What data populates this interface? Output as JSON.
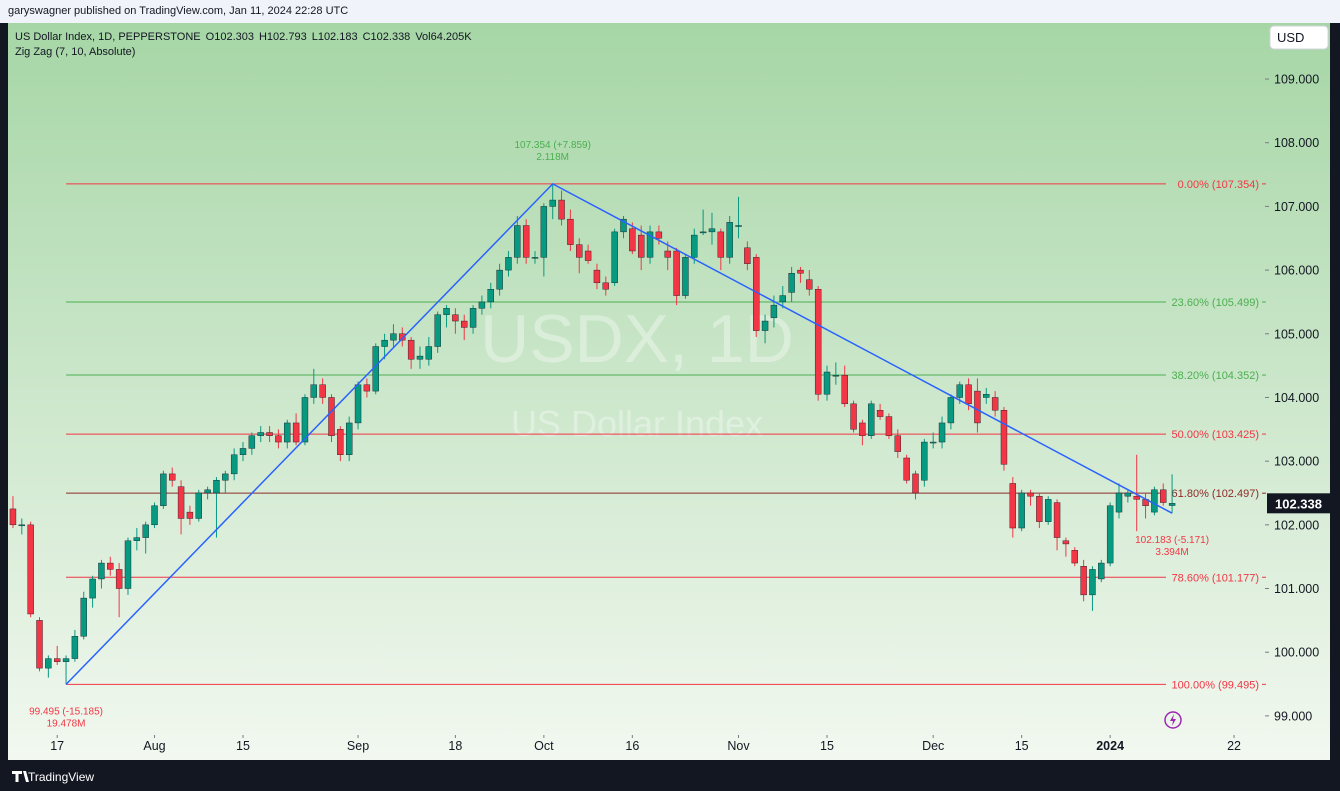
{
  "header": {
    "published": "garyswagner published on TradingView.com, Jan 11, 2024 22:28 UTC",
    "logo": "TradingView"
  },
  "chart_data": {
    "type": "candlestick",
    "title": "US Dollar Index, 1D, PEPPERSTONE",
    "legend_values": [
      "O102.303",
      "H102.793",
      "L102.183",
      "C102.338",
      "Vol64.205K"
    ],
    "indicator": "Zig Zag (7, 10, Absolute)",
    "watermark": [
      "USDX, 1D",
      "US Dollar Index"
    ],
    "currency": "USD",
    "colors": {
      "up": "#089981",
      "down": "#f23645"
    },
    "grid": false,
    "last_price": {
      "value": 102.338,
      "label": "102.338"
    },
    "xlim": [
      -0.56,
      141.5
    ],
    "ylim": [
      98.7,
      109.88
    ],
    "yticks": [
      {
        "value": 99,
        "label": "99.000"
      },
      {
        "value": 100,
        "label": "100.000"
      },
      {
        "value": 101,
        "label": "101.000"
      },
      {
        "value": 102,
        "label": "102.000"
      },
      {
        "value": 103,
        "label": "103.000"
      },
      {
        "value": 104,
        "label": "104.000"
      },
      {
        "value": 105,
        "label": "105.000"
      },
      {
        "value": 106,
        "label": "106.000"
      },
      {
        "value": 107,
        "label": "107.000"
      },
      {
        "value": 108,
        "label": "108.000"
      },
      {
        "value": 109,
        "label": "109.000"
      }
    ],
    "xticks": [
      {
        "value": 5,
        "label": "17"
      },
      {
        "value": 16,
        "label": "Aug"
      },
      {
        "value": 26,
        "label": "15"
      },
      {
        "value": 39,
        "label": "Sep"
      },
      {
        "value": 50,
        "label": "18"
      },
      {
        "value": 60,
        "label": "Oct"
      },
      {
        "value": 70,
        "label": "16"
      },
      {
        "value": 82,
        "label": "Nov"
      },
      {
        "value": 92,
        "label": "15"
      },
      {
        "value": 104,
        "label": "Dec"
      },
      {
        "value": 114,
        "label": "15"
      },
      {
        "value": 124,
        "label": "2024"
      },
      {
        "value": 138,
        "label": "22"
      }
    ],
    "ohlc": [
      [
        102.25,
        102.45,
        101.95,
        102.0
      ],
      [
        102.0,
        102.1,
        101.85,
        102.0
      ],
      [
        102.0,
        102.05,
        100.55,
        100.6
      ],
      [
        100.5,
        100.55,
        99.7,
        99.75
      ],
      [
        99.75,
        99.95,
        99.6,
        99.9
      ],
      [
        99.9,
        100.1,
        99.8,
        99.85
      ],
      [
        99.85,
        99.95,
        99.495,
        99.9
      ],
      [
        99.9,
        100.35,
        99.85,
        100.25
      ],
      [
        100.25,
        100.95,
        100.2,
        100.85
      ],
      [
        100.85,
        101.2,
        100.7,
        101.15
      ],
      [
        101.15,
        101.45,
        101.0,
        101.4
      ],
      [
        101.4,
        101.5,
        101.2,
        101.3
      ],
      [
        101.3,
        101.4,
        100.55,
        101.0
      ],
      [
        101.0,
        101.8,
        100.9,
        101.75
      ],
      [
        101.75,
        101.95,
        101.6,
        101.8
      ],
      [
        101.8,
        102.05,
        101.55,
        102.0
      ],
      [
        102.0,
        102.35,
        101.95,
        102.3
      ],
      [
        102.3,
        102.85,
        102.25,
        102.8
      ],
      [
        102.8,
        102.9,
        102.6,
        102.7
      ],
      [
        102.6,
        102.7,
        101.85,
        102.1
      ],
      [
        102.2,
        102.3,
        102.0,
        102.1
      ],
      [
        102.1,
        102.55,
        102.05,
        102.5
      ],
      [
        102.5,
        102.6,
        102.4,
        102.55
      ],
      [
        102.5,
        102.75,
        101.8,
        102.7
      ],
      [
        102.7,
        102.85,
        102.5,
        102.8
      ],
      [
        102.8,
        103.2,
        102.7,
        103.1
      ],
      [
        103.1,
        103.3,
        103.0,
        103.2
      ],
      [
        103.2,
        103.45,
        103.1,
        103.4
      ],
      [
        103.4,
        103.55,
        103.3,
        103.45
      ],
      [
        103.45,
        103.55,
        103.3,
        103.4
      ],
      [
        103.4,
        103.5,
        103.2,
        103.3
      ],
      [
        103.3,
        103.65,
        103.2,
        103.6
      ],
      [
        103.6,
        103.75,
        103.25,
        103.3
      ],
      [
        103.3,
        104.05,
        103.25,
        104.0
      ],
      [
        104.0,
        104.45,
        103.9,
        104.2
      ],
      [
        104.2,
        104.3,
        103.9,
        104.0
      ],
      [
        104.0,
        104.05,
        103.3,
        103.4
      ],
      [
        103.5,
        103.55,
        103.0,
        103.1
      ],
      [
        103.1,
        103.7,
        103.0,
        103.6
      ],
      [
        103.6,
        104.25,
        103.5,
        104.2
      ],
      [
        104.2,
        104.3,
        104.0,
        104.1
      ],
      [
        104.1,
        104.85,
        104.05,
        104.8
      ],
      [
        104.8,
        105.0,
        104.6,
        104.9
      ],
      [
        104.9,
        105.15,
        104.8,
        105.0
      ],
      [
        105.0,
        105.1,
        104.8,
        104.9
      ],
      [
        104.9,
        104.95,
        104.45,
        104.6
      ],
      [
        104.6,
        104.8,
        104.45,
        104.65
      ],
      [
        104.6,
        104.95,
        104.5,
        104.8
      ],
      [
        104.8,
        105.35,
        104.7,
        105.3
      ],
      [
        105.3,
        105.45,
        105.1,
        105.4
      ],
      [
        105.3,
        105.4,
        105.0,
        105.2
      ],
      [
        105.2,
        105.3,
        104.9,
        105.1
      ],
      [
        105.1,
        105.45,
        105.0,
        105.4
      ],
      [
        105.4,
        105.6,
        105.3,
        105.5
      ],
      [
        105.5,
        105.8,
        105.4,
        105.7
      ],
      [
        105.7,
        106.1,
        105.6,
        106.0
      ],
      [
        106.0,
        106.3,
        105.9,
        106.2
      ],
      [
        106.2,
        106.85,
        106.1,
        106.7
      ],
      [
        106.7,
        106.8,
        106.1,
        106.2
      ],
      [
        106.2,
        106.3,
        106.1,
        106.2
      ],
      [
        106.2,
        107.05,
        105.9,
        107.0
      ],
      [
        107.0,
        107.354,
        106.8,
        107.1
      ],
      [
        107.1,
        107.25,
        106.7,
        106.8
      ],
      [
        106.8,
        106.95,
        106.3,
        106.4
      ],
      [
        106.4,
        106.5,
        105.95,
        106.2
      ],
      [
        106.3,
        106.4,
        106.1,
        106.15
      ],
      [
        106.0,
        106.1,
        105.7,
        105.8
      ],
      [
        105.8,
        105.9,
        105.6,
        105.7
      ],
      [
        105.8,
        106.65,
        105.75,
        106.6
      ],
      [
        106.6,
        106.85,
        106.5,
        106.8
      ],
      [
        106.65,
        106.75,
        106.25,
        106.3
      ],
      [
        106.55,
        106.7,
        106.0,
        106.2
      ],
      [
        106.2,
        106.7,
        106.1,
        106.6
      ],
      [
        106.6,
        106.7,
        106.4,
        106.5
      ],
      [
        106.3,
        106.45,
        106.0,
        106.2
      ],
      [
        106.3,
        106.35,
        105.45,
        105.6
      ],
      [
        105.6,
        106.25,
        105.55,
        106.2
      ],
      [
        106.2,
        106.65,
        106.1,
        106.55
      ],
      [
        106.6,
        106.95,
        106.55,
        106.6
      ],
      [
        106.6,
        106.9,
        106.4,
        106.65
      ],
      [
        106.6,
        106.65,
        106.0,
        106.2
      ],
      [
        106.2,
        106.85,
        106.1,
        106.75
      ],
      [
        106.7,
        107.15,
        106.5,
        106.7
      ],
      [
        106.35,
        106.45,
        106.0,
        106.1
      ],
      [
        106.2,
        106.25,
        104.95,
        105.05
      ],
      [
        105.05,
        105.3,
        104.85,
        105.2
      ],
      [
        105.25,
        105.6,
        105.1,
        105.45
      ],
      [
        105.5,
        105.75,
        105.4,
        105.6
      ],
      [
        105.65,
        106.05,
        105.5,
        105.95
      ],
      [
        106.0,
        106.05,
        105.8,
        105.95
      ],
      [
        105.85,
        106.0,
        105.6,
        105.7
      ],
      [
        105.7,
        105.75,
        103.95,
        104.05
      ],
      [
        104.05,
        104.5,
        103.95,
        104.4
      ],
      [
        104.35,
        104.55,
        104.2,
        104.35
      ],
      [
        104.35,
        104.5,
        103.85,
        103.9
      ],
      [
        103.9,
        103.95,
        103.45,
        103.5
      ],
      [
        103.6,
        103.65,
        103.25,
        103.4
      ],
      [
        103.4,
        103.95,
        103.35,
        103.9
      ],
      [
        103.8,
        103.9,
        103.65,
        103.7
      ],
      [
        103.7,
        103.75,
        103.35,
        103.4
      ],
      [
        103.4,
        103.5,
        103.05,
        103.15
      ],
      [
        103.05,
        103.1,
        102.65,
        102.7
      ],
      [
        102.8,
        102.85,
        102.4,
        102.5
      ],
      [
        102.7,
        103.35,
        102.6,
        103.3
      ],
      [
        103.3,
        103.45,
        103.2,
        103.3
      ],
      [
        103.3,
        103.7,
        103.2,
        103.6
      ],
      [
        103.6,
        104.05,
        103.5,
        104.0
      ],
      [
        104.0,
        104.25,
        103.9,
        104.2
      ],
      [
        104.2,
        104.3,
        103.8,
        103.9
      ],
      [
        104.1,
        104.3,
        103.45,
        103.6
      ],
      [
        104.0,
        104.15,
        103.9,
        104.05
      ],
      [
        104.0,
        104.1,
        103.7,
        103.8
      ],
      [
        103.8,
        103.85,
        102.85,
        102.95
      ],
      [
        102.65,
        102.75,
        101.8,
        101.95
      ],
      [
        101.95,
        102.55,
        101.9,
        102.5
      ],
      [
        102.5,
        102.55,
        102.3,
        102.45
      ],
      [
        102.45,
        102.5,
        101.95,
        102.05
      ],
      [
        102.05,
        102.45,
        102.0,
        102.4
      ],
      [
        102.35,
        102.4,
        101.6,
        101.8
      ],
      [
        101.75,
        101.8,
        101.5,
        101.7
      ],
      [
        101.6,
        101.65,
        101.35,
        101.4
      ],
      [
        101.35,
        101.45,
        100.8,
        100.9
      ],
      [
        100.9,
        101.35,
        100.65,
        101.3
      ],
      [
        101.15,
        101.45,
        101.1,
        101.4
      ],
      [
        101.4,
        102.35,
        101.35,
        102.3
      ],
      [
        102.2,
        102.65,
        102.1,
        102.5
      ],
      [
        102.45,
        102.55,
        102.35,
        102.5
      ],
      [
        102.45,
        103.1,
        101.9,
        102.4
      ],
      [
        102.4,
        102.5,
        102.1,
        102.3
      ],
      [
        102.2,
        102.6,
        102.15,
        102.55
      ],
      [
        102.55,
        102.65,
        102.3,
        102.35
      ],
      [
        102.303,
        102.793,
        102.183,
        102.338
      ]
    ],
    "zigzag": {
      "color": "#2962ff",
      "points": [
        {
          "x": 6,
          "y": 99.495,
          "label": "99.495 (-15.185)",
          "volume": "19.478M",
          "color": "#f23645"
        },
        {
          "x": 61,
          "y": 107.354,
          "label": "107.354 (+7.859)",
          "volume": "2.118M",
          "color": "#4caf50"
        },
        {
          "x": 131,
          "y": 102.183,
          "label": "102.183 (-5.171)",
          "volume": "3.394M",
          "color": "#f23645"
        }
      ]
    },
    "fib_levels": [
      {
        "label": "0.00% (107.354)",
        "value": 107.354,
        "color": "#f23645"
      },
      {
        "label": "23.60% (105.499)",
        "value": 105.499,
        "color": "#4caf50"
      },
      {
        "label": "38.20% (104.352)",
        "value": 104.352,
        "color": "#4caf50"
      },
      {
        "label": "50.00% (103.425)",
        "value": 103.425,
        "color": "#f23645"
      },
      {
        "label": "61.80% (102.497)",
        "value": 102.497,
        "color": "#8d2b2b"
      },
      {
        "label": "78.60% (101.177)",
        "value": 101.177,
        "color": "#f23645"
      },
      {
        "label": "100.00% (99.495)",
        "value": 99.495,
        "color": "#f23645"
      }
    ]
  }
}
